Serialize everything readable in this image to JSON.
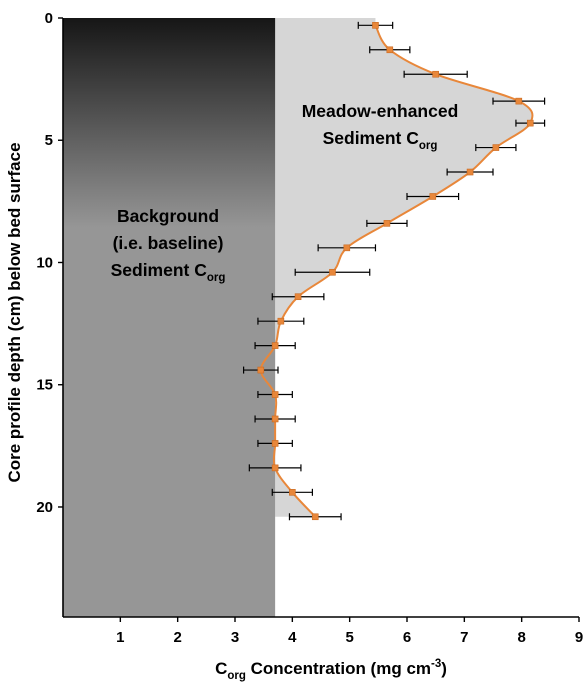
{
  "chart_data": {
    "type": "line",
    "title": "",
    "xlabel": {
      "prefix": "C",
      "sub": "org",
      "middle": " Concentration (mg cm",
      "sup": "-3",
      "suffix": ")"
    },
    "ylabel": "Core profile depth (cm) below bed surface",
    "xlim": [
      0,
      9
    ],
    "ylim": [
      0,
      24.5
    ],
    "y_inverted": true,
    "x_axis_position": "bottom",
    "y_axis_position": "left",
    "xticks": [
      1,
      2,
      3,
      4,
      5,
      6,
      7,
      8,
      9
    ],
    "yticks": [
      0,
      5,
      10,
      15,
      20
    ],
    "grid": false,
    "legend": "none",
    "baseline_x": 3.7,
    "regions": {
      "background": {
        "lines": [
          "Background",
          "(i.e. baseline)"
        ],
        "label_prefix": "Sediment C",
        "label_sub": "org"
      },
      "enhanced": {
        "lines": [
          "Meadow-enhanced"
        ],
        "label_prefix": "Sediment C",
        "label_sub": "org"
      }
    },
    "series": [
      {
        "x": [
          5.45,
          5.7,
          6.5,
          7.95,
          8.15,
          7.55,
          7.1,
          6.45,
          5.65,
          4.95,
          4.7,
          4.1,
          3.8,
          3.7,
          3.45,
          3.7,
          3.7,
          3.7,
          3.7,
          4.0,
          4.4
        ],
        "y": [
          0.3,
          1.3,
          2.3,
          3.4,
          4.3,
          5.3,
          6.3,
          7.3,
          8.4,
          9.4,
          10.4,
          11.4,
          12.4,
          13.4,
          14.4,
          15.4,
          16.4,
          17.4,
          18.4,
          19.4,
          20.4
        ],
        "xerr": [
          0.3,
          0.35,
          0.55,
          0.45,
          0.25,
          0.35,
          0.4,
          0.45,
          0.35,
          0.5,
          0.65,
          0.45,
          0.4,
          0.35,
          0.3,
          0.3,
          0.35,
          0.3,
          0.45,
          0.35,
          0.45
        ]
      }
    ],
    "colors": {
      "line": "#e8873a",
      "marker": "#e8873a",
      "error_bar": "#000000",
      "enhanced_fill": "#d6d6d6",
      "background_top": "#161616",
      "background_bottom": "#969696",
      "axis": "#000000"
    }
  }
}
